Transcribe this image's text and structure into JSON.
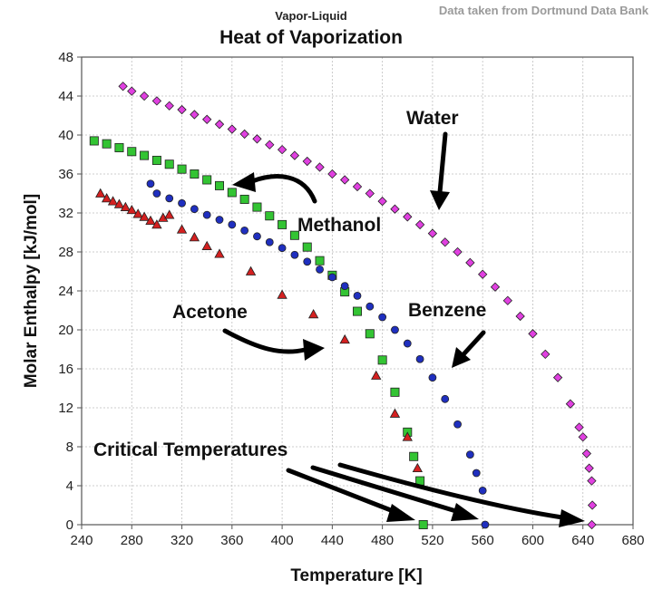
{
  "header": {
    "subtitle": "Vapor-Liquid",
    "title": "Heat of Vaporization",
    "source_note": "Data taken from Dortmund Data Bank"
  },
  "chart_data": {
    "type": "scatter",
    "title": "Heat of Vaporization",
    "subtitle": "Vapor-Liquid",
    "xlabel": "Temperature [K]",
    "ylabel": "Molar Enthalpy [kJ/mol]",
    "xlim": [
      240,
      680
    ],
    "ylim": [
      0,
      48
    ],
    "xticks": [
      240,
      280,
      320,
      360,
      400,
      440,
      480,
      520,
      560,
      600,
      640,
      680
    ],
    "yticks": [
      0,
      4,
      8,
      12,
      16,
      20,
      24,
      28,
      32,
      36,
      40,
      44,
      48
    ],
    "grid": true,
    "series": [
      {
        "name": "Water",
        "color": "#e040e0",
        "marker": "diamond",
        "points": [
          [
            273,
            45
          ],
          [
            280,
            44.5
          ],
          [
            290,
            44
          ],
          [
            300,
            43.5
          ],
          [
            310,
            43
          ],
          [
            320,
            42.6
          ],
          [
            330,
            42.1
          ],
          [
            340,
            41.6
          ],
          [
            350,
            41.1
          ],
          [
            360,
            40.6
          ],
          [
            370,
            40.1
          ],
          [
            380,
            39.6
          ],
          [
            390,
            39
          ],
          [
            400,
            38.5
          ],
          [
            410,
            37.9
          ],
          [
            420,
            37.3
          ],
          [
            430,
            36.7
          ],
          [
            440,
            36
          ],
          [
            450,
            35.4
          ],
          [
            460,
            34.7
          ],
          [
            470,
            34
          ],
          [
            480,
            33.2
          ],
          [
            490,
            32.4
          ],
          [
            500,
            31.6
          ],
          [
            510,
            30.8
          ],
          [
            520,
            29.9
          ],
          [
            530,
            29
          ],
          [
            540,
            28
          ],
          [
            550,
            26.9
          ],
          [
            560,
            25.7
          ],
          [
            570,
            24.4
          ],
          [
            580,
            23
          ],
          [
            590,
            21.4
          ],
          [
            600,
            19.6
          ],
          [
            610,
            17.5
          ],
          [
            620,
            15.1
          ],
          [
            630,
            12.4
          ],
          [
            637,
            10
          ],
          [
            640,
            9
          ],
          [
            643,
            7.3
          ],
          [
            645,
            5.8
          ],
          [
            647,
            4.5
          ],
          [
            647.5,
            2
          ],
          [
            647.1,
            0
          ]
        ]
      },
      {
        "name": "Methanol",
        "color": "#33c433",
        "marker": "square",
        "points": [
          [
            250,
            39.4
          ],
          [
            260,
            39.1
          ],
          [
            270,
            38.7
          ],
          [
            280,
            38.3
          ],
          [
            290,
            37.9
          ],
          [
            300,
            37.4
          ],
          [
            310,
            37
          ],
          [
            320,
            36.5
          ],
          [
            330,
            36
          ],
          [
            340,
            35.4
          ],
          [
            350,
            34.8
          ],
          [
            360,
            34.1
          ],
          [
            370,
            33.4
          ],
          [
            380,
            32.6
          ],
          [
            390,
            31.7
          ],
          [
            400,
            30.8
          ],
          [
            410,
            29.7
          ],
          [
            420,
            28.5
          ],
          [
            430,
            27.1
          ],
          [
            440,
            25.6
          ],
          [
            450,
            23.9
          ],
          [
            460,
            21.9
          ],
          [
            470,
            19.6
          ],
          [
            480,
            16.9
          ],
          [
            490,
            13.6
          ],
          [
            500,
            9.5
          ],
          [
            505,
            7
          ],
          [
            510,
            4.5
          ],
          [
            512.6,
            0
          ]
        ]
      },
      {
        "name": "Benzene",
        "color": "#1f2fbf",
        "marker": "circle",
        "points": [
          [
            295,
            35
          ],
          [
            300,
            34
          ],
          [
            310,
            33.5
          ],
          [
            320,
            33
          ],
          [
            330,
            32.4
          ],
          [
            340,
            31.8
          ],
          [
            350,
            31.3
          ],
          [
            360,
            30.8
          ],
          [
            370,
            30.2
          ],
          [
            380,
            29.6
          ],
          [
            390,
            29
          ],
          [
            400,
            28.4
          ],
          [
            410,
            27.7
          ],
          [
            420,
            27
          ],
          [
            430,
            26.2
          ],
          [
            440,
            25.4
          ],
          [
            450,
            24.5
          ],
          [
            460,
            23.5
          ],
          [
            470,
            22.4
          ],
          [
            480,
            21.3
          ],
          [
            490,
            20
          ],
          [
            500,
            18.6
          ],
          [
            510,
            17
          ],
          [
            520,
            15.1
          ],
          [
            530,
            12.9
          ],
          [
            540,
            10.3
          ],
          [
            550,
            7.2
          ],
          [
            555,
            5.3
          ],
          [
            560,
            3.5
          ],
          [
            562,
            0
          ]
        ]
      },
      {
        "name": "Acetone",
        "color": "#d42020",
        "marker": "triangle",
        "points": [
          [
            255,
            34
          ],
          [
            260,
            33.5
          ],
          [
            265,
            33.2
          ],
          [
            270,
            32.9
          ],
          [
            275,
            32.6
          ],
          [
            280,
            32.3
          ],
          [
            285,
            31.9
          ],
          [
            290,
            31.6
          ],
          [
            295,
            31.2
          ],
          [
            300,
            30.8
          ],
          [
            305,
            31.5
          ],
          [
            310,
            31.8
          ],
          [
            320,
            30.3
          ],
          [
            330,
            29.5
          ],
          [
            340,
            28.6
          ],
          [
            350,
            27.8
          ],
          [
            375,
            26
          ],
          [
            400,
            23.6
          ],
          [
            425,
            21.6
          ],
          [
            450,
            19
          ],
          [
            475,
            15.3
          ],
          [
            490,
            11.4
          ],
          [
            500,
            9
          ],
          [
            508,
            5.8
          ]
        ]
      }
    ],
    "annotations": [
      {
        "text": "Water"
      },
      {
        "text": "Methanol"
      },
      {
        "text": "Benzene"
      },
      {
        "text": "Acetone"
      },
      {
        "text": "Critical Temperatures"
      }
    ]
  }
}
